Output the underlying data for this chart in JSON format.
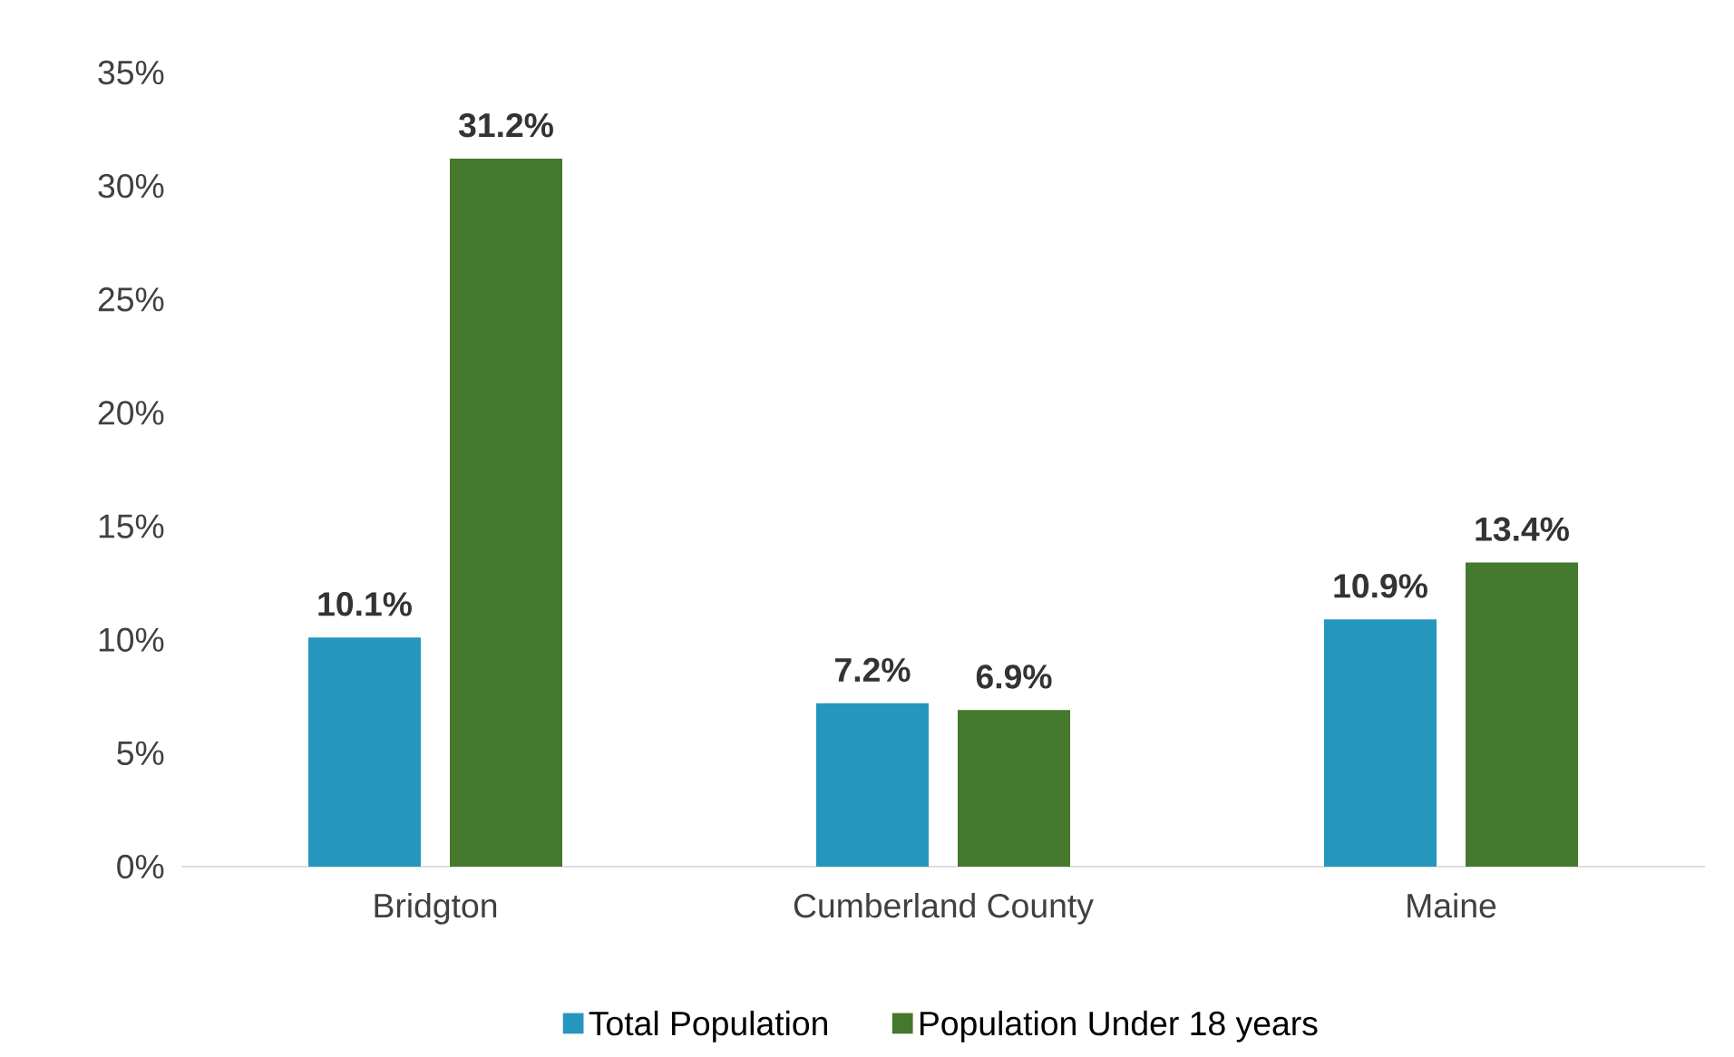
{
  "chart_data": {
    "type": "bar",
    "categories": [
      "Bridgton",
      "Cumberland County",
      "Maine"
    ],
    "series": [
      {
        "name": "Total Population",
        "color": "#2596be",
        "values": [
          10.1,
          7.2,
          10.9
        ],
        "value_labels": [
          "10.1%",
          "7.2%",
          "10.9%"
        ]
      },
      {
        "name": "Population Under 18 years",
        "color": "#44782c",
        "values": [
          31.2,
          6.9,
          13.4
        ],
        "value_labels": [
          "31.2%",
          "6.9%",
          "13.4%"
        ]
      }
    ],
    "ylim": [
      0,
      35
    ],
    "yticks": [
      {
        "value": 0,
        "label": "0%"
      },
      {
        "value": 5,
        "label": "5%"
      },
      {
        "value": 10,
        "label": "10%"
      },
      {
        "value": 15,
        "label": "15%"
      },
      {
        "value": 20,
        "label": "20%"
      },
      {
        "value": 25,
        "label": "25%"
      },
      {
        "value": 30,
        "label": "30%"
      },
      {
        "value": 35,
        "label": "35%"
      }
    ],
    "grid": false,
    "legend": "bottom"
  }
}
